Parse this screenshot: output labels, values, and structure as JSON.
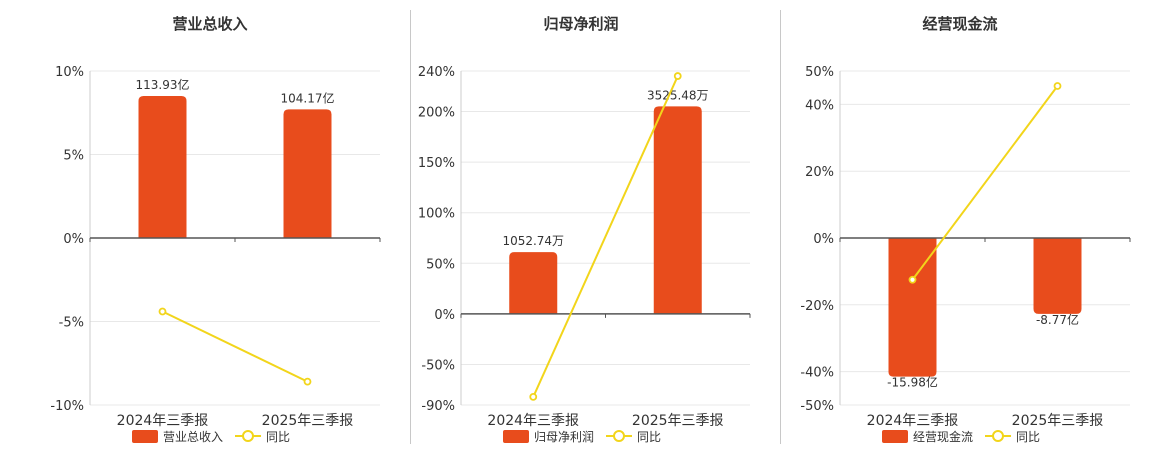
{
  "colors": {
    "bar": "#e84c1c",
    "line": "#f2d51b",
    "axis": "#555555",
    "grid": "#e8e8e8",
    "separator": "#c8c8c8",
    "text": "#333333"
  },
  "chart_data": [
    {
      "type": "bar",
      "title": "营业总收入",
      "categories": [
        "2024年三季报",
        "2025年三季报"
      ],
      "bar_series": {
        "name": "营业总收入",
        "values": [
          113.93,
          104.17
        ],
        "labels": [
          "113.93亿",
          "104.17亿"
        ],
        "unit": "亿"
      },
      "line_series": {
        "name": "同比",
        "values": [
          -4.4,
          -8.6
        ]
      },
      "y_axis": {
        "min": -10,
        "max": 10,
        "ticks": [
          10,
          5,
          0,
          -5,
          -10
        ],
        "tick_labels": [
          "10%",
          "5%",
          "0%",
          "-5%",
          "-10%"
        ]
      },
      "bar_heights_pct": [
        8.5,
        7.7
      ],
      "legend": {
        "position": "bottom",
        "items": [
          "营业总收入",
          "同比"
        ]
      },
      "grid": true
    },
    {
      "type": "bar",
      "title": "归母净利润",
      "categories": [
        "2024年三季报",
        "2025年三季报"
      ],
      "bar_series": {
        "name": "归母净利润",
        "values": [
          1052.74,
          3525.48
        ],
        "labels": [
          "1052.74万",
          "3525.48万"
        ],
        "unit": "万"
      },
      "line_series": {
        "name": "同比",
        "values": [
          -82,
          235
        ]
      },
      "y_axis": {
        "min": -90,
        "max": 240,
        "ticks": [
          240,
          200,
          150,
          100,
          50,
          0,
          -50,
          -90
        ],
        "tick_labels": [
          "240%",
          "200%",
          "150%",
          "100%",
          "50%",
          "0%",
          "-50%",
          "-90%"
        ]
      },
      "bar_heights_pct": [
        61,
        205
      ],
      "legend": {
        "position": "bottom",
        "items": [
          "归母净利润",
          "同比"
        ]
      },
      "grid": true
    },
    {
      "type": "bar",
      "title": "经营现金流",
      "categories": [
        "2024年三季报",
        "2025年三季报"
      ],
      "bar_series": {
        "name": "经营现金流",
        "values": [
          -15.98,
          -8.77
        ],
        "labels": [
          "-15.98亿",
          "-8.77亿"
        ],
        "unit": "亿"
      },
      "line_series": {
        "name": "同比",
        "values": [
          -12.5,
          45.5
        ]
      },
      "y_axis": {
        "min": -50,
        "max": 50,
        "ticks": [
          50,
          40,
          20,
          0,
          -20,
          -40,
          -50
        ],
        "tick_labels": [
          "50%",
          "40%",
          "20%",
          "0%",
          "-20%",
          "-40%",
          "-50%"
        ]
      },
      "bar_heights_pct": [
        -41.5,
        -22.7
      ],
      "legend": {
        "position": "bottom",
        "items": [
          "经营现金流",
          "同比"
        ]
      },
      "grid": true
    }
  ]
}
